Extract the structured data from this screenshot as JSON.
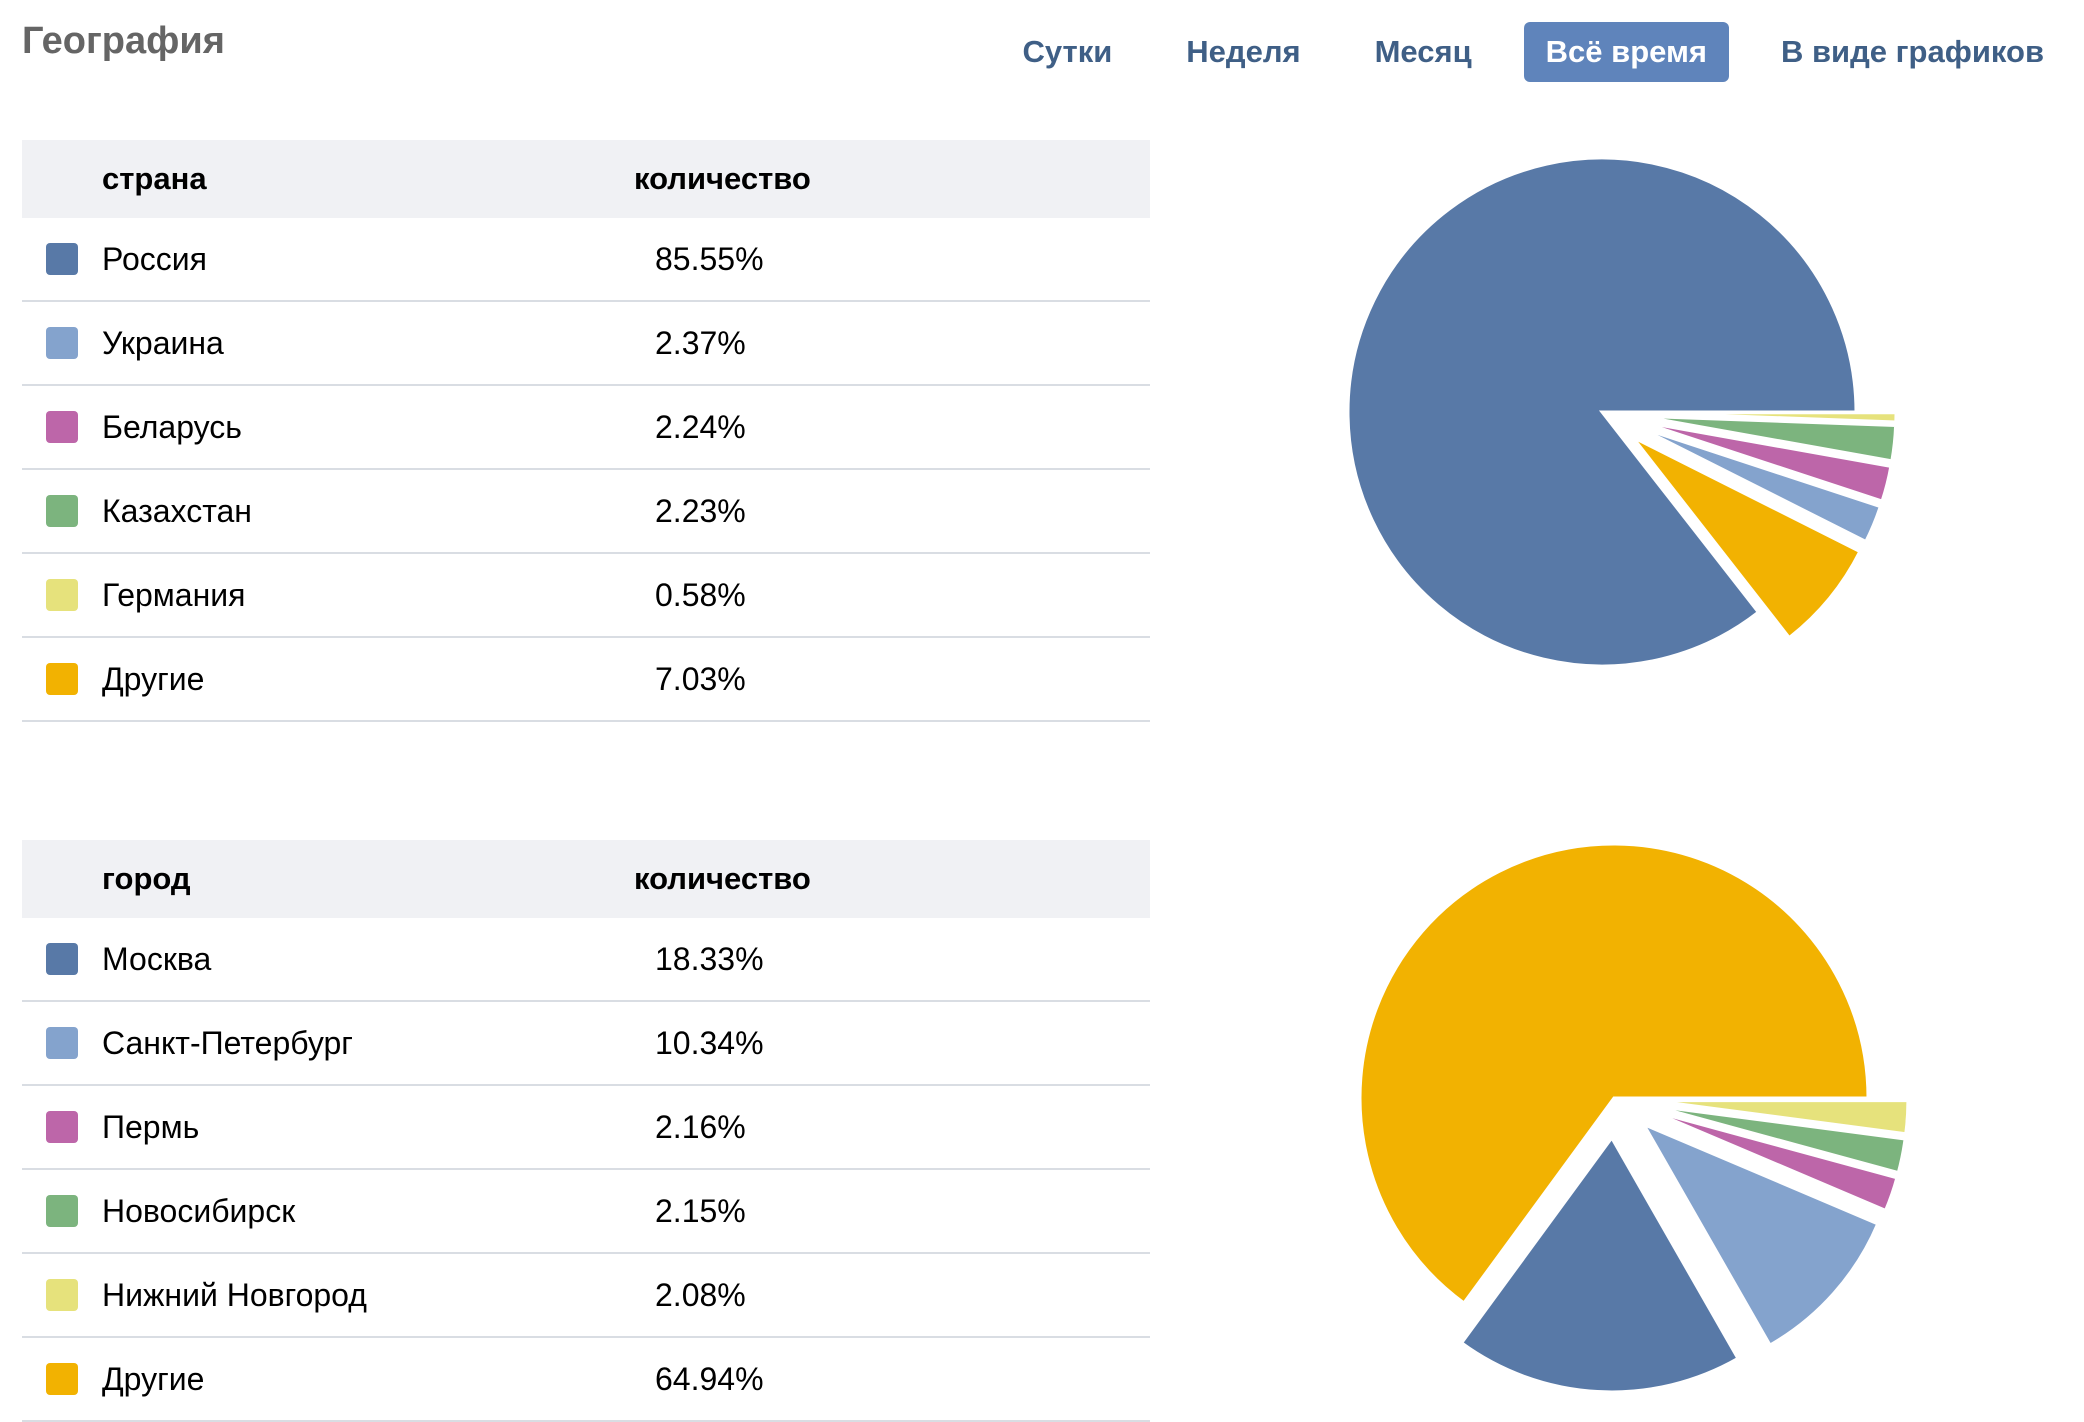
{
  "header": {
    "title": "География",
    "tabs": [
      {
        "label": "Сутки",
        "active": false
      },
      {
        "label": "Неделя",
        "active": false
      },
      {
        "label": "Месяц",
        "active": false
      },
      {
        "label": "Всё время",
        "active": true
      },
      {
        "label": "В виде графиков",
        "active": false
      }
    ]
  },
  "colors": {
    "blue": "#5879a7",
    "light_blue": "#84a3cd",
    "pink": "#bd66a9",
    "green": "#7cb47e",
    "yellow": "#e6e27c",
    "orange": "#f2b201",
    "active_tab": "#5f84bb",
    "tab_text": "#3f5f86"
  },
  "countries": {
    "col_name": "страна",
    "col_value": "количество",
    "rows": [
      {
        "name": "Россия",
        "value": "85.55%",
        "color": "#5879a7"
      },
      {
        "name": "Украина",
        "value": "2.37%",
        "color": "#84a3cd"
      },
      {
        "name": "Беларусь",
        "value": "2.24%",
        "color": "#bd66a9"
      },
      {
        "name": "Казахстан",
        "value": "2.23%",
        "color": "#7cb47e"
      },
      {
        "name": "Германия",
        "value": "0.58%",
        "color": "#e6e27c"
      },
      {
        "name": "Другие",
        "value": "7.03%",
        "color": "#f2b201"
      }
    ]
  },
  "cities": {
    "col_name": "город",
    "col_value": "количество",
    "rows": [
      {
        "name": "Москва",
        "value": "18.33%",
        "color": "#5879a7"
      },
      {
        "name": "Санкт-Петербург",
        "value": "10.34%",
        "color": "#84a3cd"
      },
      {
        "name": "Пермь",
        "value": "2.16%",
        "color": "#bd66a9"
      },
      {
        "name": "Новосибирск",
        "value": "2.15%",
        "color": "#7cb47e"
      },
      {
        "name": "Нижний Новгород",
        "value": "2.08%",
        "color": "#e6e27c"
      },
      {
        "name": "Другие",
        "value": "64.94%",
        "color": "#f2b201"
      }
    ]
  },
  "chart_data": [
    {
      "type": "pie",
      "title": "",
      "categories": [
        "Россия",
        "Украина",
        "Беларусь",
        "Казахстан",
        "Германия",
        "Другие"
      ],
      "values": [
        85.55,
        2.37,
        2.24,
        2.23,
        0.58,
        7.03
      ],
      "colors": [
        "#5879a7",
        "#84a3cd",
        "#bd66a9",
        "#7cb47e",
        "#e6e27c",
        "#f2b201"
      ],
      "emphasized": "Россия"
    },
    {
      "type": "pie",
      "title": "",
      "categories": [
        "Москва",
        "Санкт-Петербург",
        "Пермь",
        "Новосибирск",
        "Нижний Новгород",
        "Другие"
      ],
      "values": [
        18.33,
        10.34,
        2.16,
        2.15,
        2.08,
        64.94
      ],
      "colors": [
        "#5879a7",
        "#84a3cd",
        "#bd66a9",
        "#7cb47e",
        "#e6e27c",
        "#f2b201"
      ],
      "emphasized": "Другие"
    }
  ]
}
